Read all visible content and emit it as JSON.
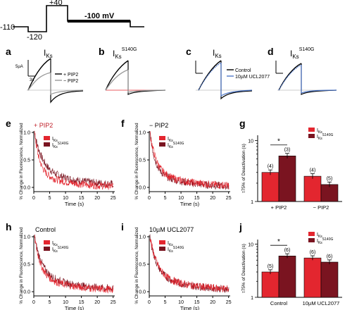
{
  "protocol": {
    "v_hold": "-110",
    "v_pre": "-120",
    "v_step": "+40",
    "v_tail": "-100 mV"
  },
  "panel_letters": [
    "a",
    "b",
    "c",
    "d",
    "e",
    "f",
    "g",
    "h",
    "i",
    "j"
  ],
  "labels": {
    "iks": "I",
    "ks_sub": "Ks",
    "s140g_sup": "S140G",
    "scale_current": "5µA",
    "scale_time": "3s",
    "plus_pip2": "+ PIP2",
    "minus_pip2": "− PIP2",
    "control": "Control",
    "ucl": "10µM UCL2077",
    "y_fluor": "% Change in Fluorescence, Normalized",
    "y_fluor_short": "% Change in Fluorescence, Normalized",
    "x_time": "Time (s)",
    "y_deact": "τ75% of Deactivation (s)"
  },
  "trace_axes": {
    "x_ticks": [
      "0",
      "5",
      "10",
      "15",
      "20",
      "25"
    ],
    "y_ticks": [
      "1.0",
      "0.5",
      "0.0"
    ]
  },
  "legend": {
    "wt": "IKs",
    "mut": "IKs S140G"
  },
  "colors": {
    "wt": "#e3262f",
    "mut": "#7a1420",
    "gray": "#9a9a9a",
    "blue": "#4f78c8"
  },
  "chart_data": [
    {
      "type": "bar",
      "panel": "g",
      "categories": [
        "+ PIP2",
        "− PIP2"
      ],
      "ylabel": "τ75% of Deactivation (s)",
      "y_scale": "log",
      "ylim": [
        1,
        10
      ],
      "y_ticks": [
        "1",
        "10"
      ],
      "series": [
        {
          "name": "IKs",
          "values": [
            3.0,
            2.6
          ],
          "n": [
            "(4)",
            "(4)"
          ]
        },
        {
          "name": "IKs S140G",
          "values": [
            5.6,
            1.9
          ],
          "n": [
            "(3)",
            "(5)"
          ]
        }
      ],
      "significance": "*"
    },
    {
      "type": "bar",
      "panel": "j",
      "categories": [
        "Control",
        "10µM UCL2077"
      ],
      "ylabel": "τ75% of Deactivation (s)",
      "y_scale": "log",
      "ylim": [
        1,
        10
      ],
      "y_ticks": [
        "1",
        "10"
      ],
      "series": [
        {
          "name": "IKs",
          "values": [
            3.0,
            5.5
          ],
          "n": [
            "(5)",
            "(6)"
          ]
        },
        {
          "name": "IKs S140G",
          "values": [
            6.0,
            4.6
          ],
          "n": [
            "(6)",
            "(6)"
          ]
        }
      ],
      "significance": "*"
    }
  ]
}
